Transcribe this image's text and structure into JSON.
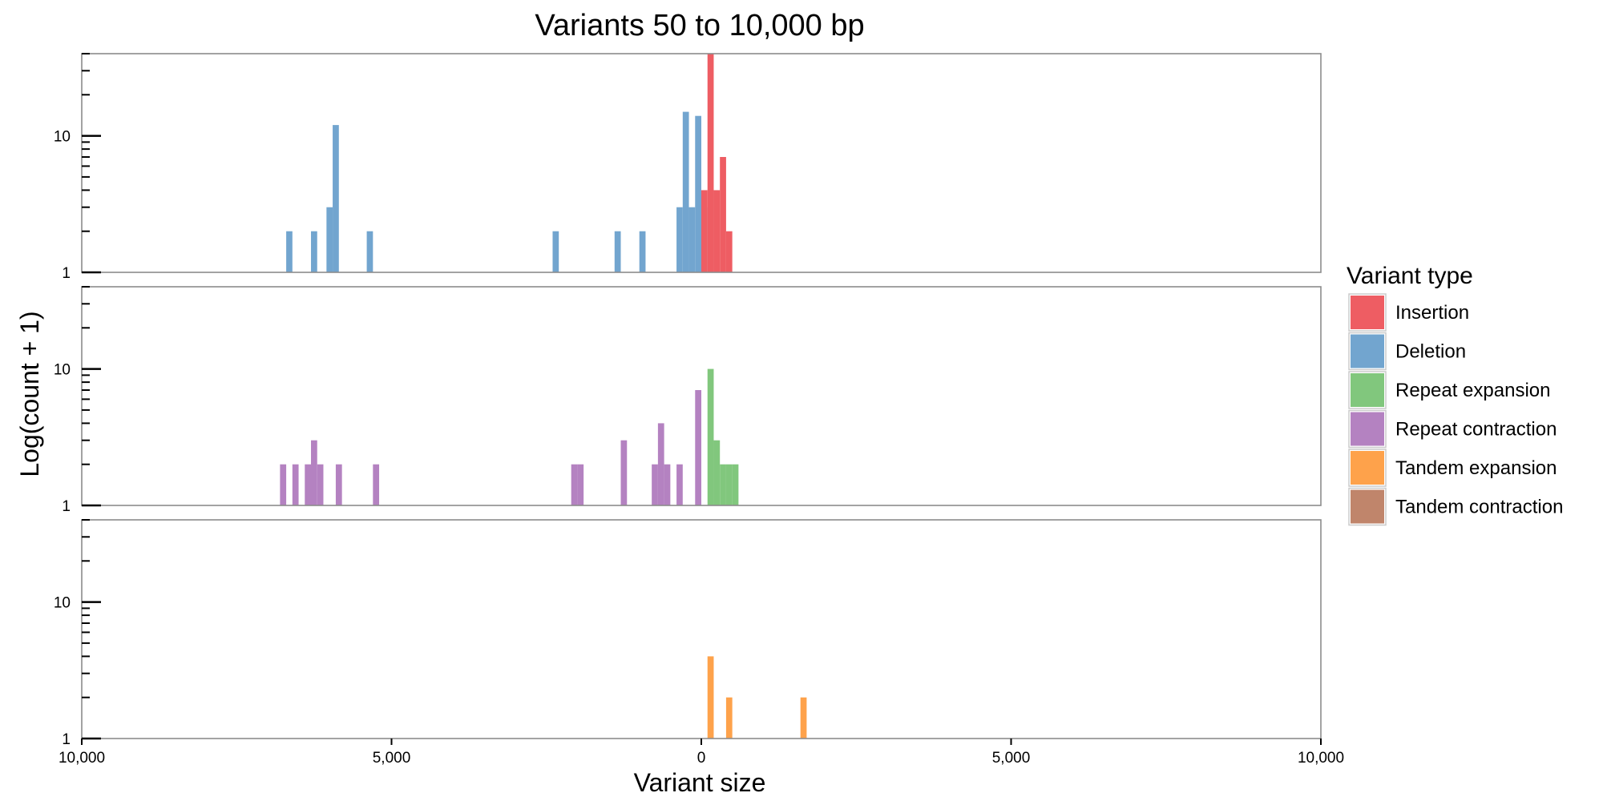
{
  "chart_data": {
    "type": "bar",
    "title": "Variants 50 to 10,000 bp",
    "xlabel": "Variant size",
    "ylabel": "Log(count + 1)",
    "xlim": [
      -10000,
      10000
    ],
    "ylim": [
      1,
      40
    ],
    "y_scale": "log10",
    "grid": false,
    "x_ticks": [
      {
        "value": -10000,
        "label": "10,000"
      },
      {
        "value": -5000,
        "label": "5,000"
      },
      {
        "value": 0,
        "label": "0"
      },
      {
        "value": 5000,
        "label": "5,000"
      },
      {
        "value": 10000,
        "label": "10,000"
      }
    ],
    "y_ticks": [
      {
        "value": 1,
        "label": "1"
      },
      {
        "value": 10,
        "label": "10"
      }
    ],
    "bin_width": 100,
    "legend": {
      "title": "Variant type",
      "position": "right",
      "entries": [
        {
          "name": "Insertion",
          "color": "#EE5D63"
        },
        {
          "name": "Deletion",
          "color": "#72A5CF"
        },
        {
          "name": "Repeat expansion",
          "color": "#81C77D"
        },
        {
          "name": "Repeat contraction",
          "color": "#B482C1"
        },
        {
          "name": "Tandem expansion",
          "color": "#FEA24B"
        },
        {
          "name": "Tandem contraction",
          "color": "#C0856B"
        }
      ]
    },
    "panels": [
      {
        "series": [
          {
            "name": "Deletion",
            "color": "#72A5CF",
            "bins": [
              {
                "x": -6700,
                "y": 2
              },
              {
                "x": -6300,
                "y": 2
              },
              {
                "x": -6050,
                "y": 3
              },
              {
                "x": -5950,
                "y": 12
              },
              {
                "x": -5400,
                "y": 2
              },
              {
                "x": -2400,
                "y": 2
              },
              {
                "x": -1400,
                "y": 2
              },
              {
                "x": -1000,
                "y": 2
              },
              {
                "x": -400,
                "y": 3
              },
              {
                "x": -300,
                "y": 15
              },
              {
                "x": -200,
                "y": 3
              },
              {
                "x": -100,
                "y": 14
              },
              {
                "x": 0,
                "y": 3
              }
            ]
          },
          {
            "name": "Insertion",
            "color": "#EE5D63",
            "bins": [
              {
                "x": 0,
                "y": 4
              },
              {
                "x": 100,
                "y": 40
              },
              {
                "x": 200,
                "y": 4
              },
              {
                "x": 300,
                "y": 7
              },
              {
                "x": 400,
                "y": 2
              }
            ]
          }
        ]
      },
      {
        "series": [
          {
            "name": "Repeat contraction",
            "color": "#B482C1",
            "bins": [
              {
                "x": -6800,
                "y": 2
              },
              {
                "x": -6600,
                "y": 2
              },
              {
                "x": -6400,
                "y": 2
              },
              {
                "x": -6300,
                "y": 3
              },
              {
                "x": -6200,
                "y": 2
              },
              {
                "x": -5900,
                "y": 2
              },
              {
                "x": -5300,
                "y": 2
              },
              {
                "x": -2100,
                "y": 2
              },
              {
                "x": -2000,
                "y": 2
              },
              {
                "x": -1300,
                "y": 3
              },
              {
                "x": -800,
                "y": 2
              },
              {
                "x": -700,
                "y": 4
              },
              {
                "x": -600,
                "y": 2
              },
              {
                "x": -400,
                "y": 2
              },
              {
                "x": -100,
                "y": 7
              }
            ]
          },
          {
            "name": "Repeat expansion",
            "color": "#81C77D",
            "bins": [
              {
                "x": 100,
                "y": 10
              },
              {
                "x": 200,
                "y": 3
              },
              {
                "x": 300,
                "y": 2
              },
              {
                "x": 400,
                "y": 2
              },
              {
                "x": 500,
                "y": 2
              }
            ]
          }
        ]
      },
      {
        "series": [
          {
            "name": "Tandem expansion",
            "color": "#FEA24B",
            "bins": [
              {
                "x": 100,
                "y": 4
              },
              {
                "x": 400,
                "y": 2
              },
              {
                "x": 1600,
                "y": 2
              }
            ]
          }
        ]
      }
    ]
  }
}
